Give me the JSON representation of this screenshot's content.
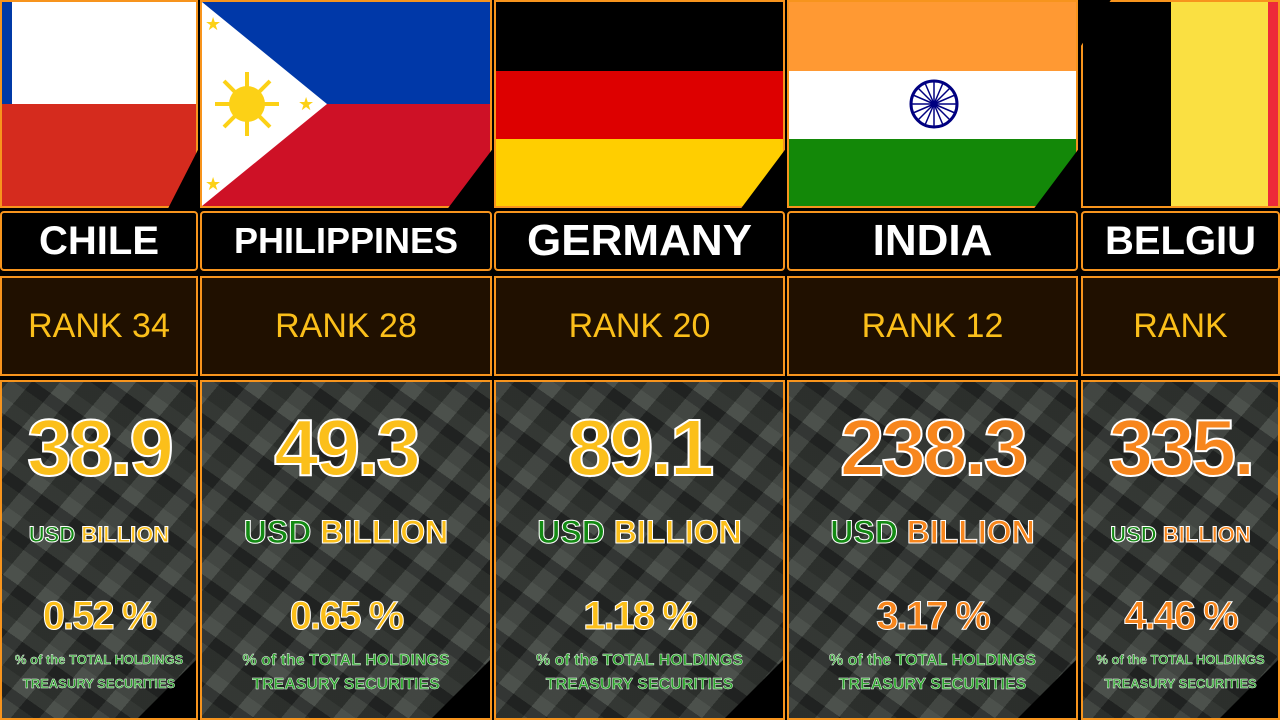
{
  "caption_line1": "% of the TOTAL HOLDINGS",
  "caption_line2": "TREASURY SECURITIES",
  "unit_usd": "USD",
  "unit_billion": "BILLION",
  "colors": {
    "border": "#f7941d",
    "yellow": "#fbbf1a",
    "orange": "#f7861d",
    "green": "#138a13"
  },
  "countries": [
    {
      "name": "CHILE",
      "rank": "RANK 34",
      "value": "38.9",
      "percent": "0.52 %",
      "accent": "#fbbf1a"
    },
    {
      "name": "PHILIPPINES",
      "rank": "RANK 28",
      "value": "49.3",
      "percent": "0.65 %",
      "accent": "#fbbf1a"
    },
    {
      "name": "GERMANY",
      "rank": "RANK 20",
      "value": "89.1",
      "percent": "1.18 %",
      "accent": "#fbbf1a"
    },
    {
      "name": "INDIA",
      "rank": "RANK 12",
      "value": "238.3",
      "percent": "3.17 %",
      "accent": "#f7861d"
    },
    {
      "name": "BELGIU",
      "rank": "RANK",
      "value": "335.",
      "percent": "4.46 %",
      "accent": "#f7861d"
    }
  ]
}
